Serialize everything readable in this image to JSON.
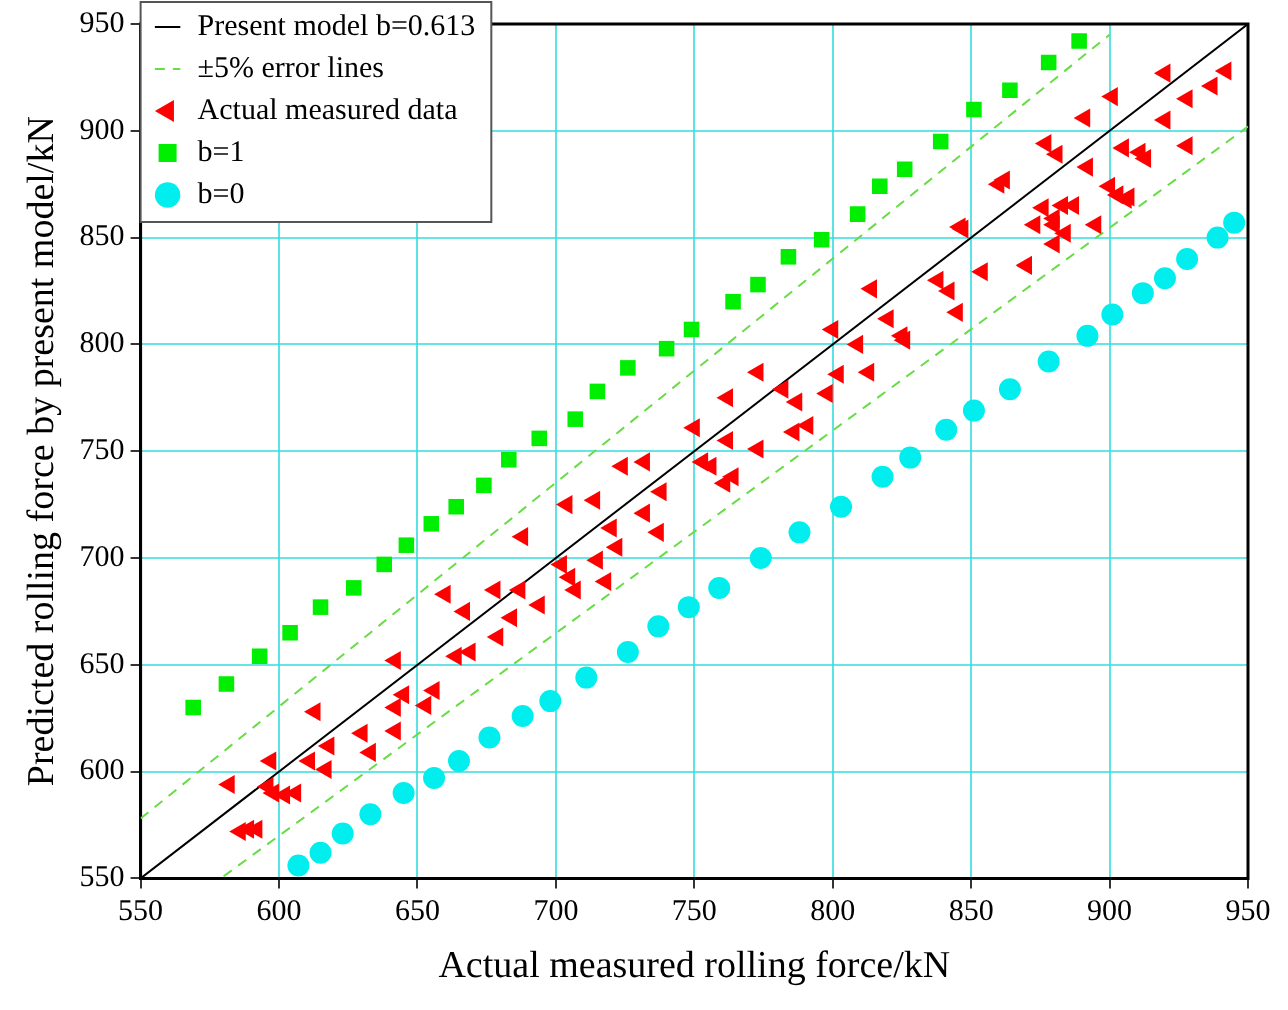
{
  "chart_data": {
    "type": "scatter",
    "xlabel": "Actual measured rolling force/kN",
    "ylabel": "Predicted rolling force by present model/kN",
    "xlim": [
      550,
      950
    ],
    "ylim": [
      550,
      950
    ],
    "xticks": [
      550,
      600,
      650,
      700,
      750,
      800,
      850,
      900,
      950
    ],
    "yticks": [
      550,
      600,
      650,
      700,
      750,
      800,
      850,
      900,
      950
    ],
    "grid": true,
    "legend": "top left",
    "series": [
      {
        "name": "Present model b=0.613",
        "type": "line",
        "color": "#000000",
        "marker": "none",
        "line_style": "solid",
        "x": [
          550,
          950
        ],
        "values": [
          550,
          950
        ]
      },
      {
        "name": "±5% error lines",
        "type": "line",
        "color": "#66dd44",
        "marker": "none",
        "line_style": "dashed",
        "x": [
          550,
          900
        ],
        "values": [
          578,
          945
        ]
      },
      {
        "name": null,
        "type": "line",
        "color": "#66dd44",
        "marker": "none",
        "line_style": "dashed",
        "x": [
          580,
          950
        ],
        "values": [
          551,
          902
        ]
      },
      {
        "name": "Actual measured data",
        "color": "#ff0000",
        "marker": "triangle",
        "x": [
          582,
          586,
          589,
          592,
          597,
          596,
          598,
          602,
          606,
          611,
          618,
          617,
          613,
          630,
          633,
          642,
          642,
          645,
          642,
          653,
          656,
          660,
          667,
          664,
          669,
          678,
          679,
          684,
          687,
          694,
          688,
          704,
          714,
          724,
          732,
          720,
          722,
          732,
          737,
          738,
          702,
          705,
          707,
          718,
          715,
          750,
          762,
          773,
          753,
          756,
          761,
          764,
          773,
          782,
          787,
          798,
          786,
          791,
          762,
          800,
          802,
          813,
          809,
          814,
          820,
          825,
          826,
          838,
          842,
          845,
          854,
          846,
          870,
          880,
          876,
          880,
          883,
          887,
          873,
          880,
          884,
          895,
          903,
          906,
          847,
          860,
          862,
          900,
          907,
          877,
          881,
          892,
          905,
          911,
          913,
          891,
          901,
          920,
          928,
          920,
          937,
          942,
          928
        ],
        "values": [
          594,
          572,
          573,
          573,
          605,
          593,
          590,
          589,
          590,
          605,
          612,
          601,
          628,
          618,
          609,
          619,
          652,
          636,
          630,
          631,
          638,
          683,
          675,
          654,
          656,
          685,
          663,
          672,
          685,
          678,
          710,
          725,
          727,
          743,
          745,
          714,
          705,
          721,
          712,
          731,
          697,
          691,
          685,
          689,
          699,
          761,
          755,
          751,
          745,
          743,
          735,
          738,
          787,
          779,
          773,
          777,
          759,
          762,
          775,
          807,
          786,
          787,
          800,
          826,
          812,
          804,
          802,
          830,
          825,
          815,
          834,
          855,
          837,
          847,
          864,
          859,
          865,
          865,
          856,
          856,
          852,
          856,
          870,
          868,
          854,
          875,
          877,
          874,
          869,
          894,
          889,
          883,
          892,
          890,
          887,
          906,
          916,
          905,
          893,
          927,
          921,
          928,
          915
        ]
      },
      {
        "name": "b=1",
        "color": "#00ee00",
        "marker": "square",
        "x": [
          569,
          581,
          593,
          604,
          615,
          627,
          638,
          646,
          655,
          664,
          674,
          683,
          694,
          707,
          715,
          726,
          740,
          749,
          764,
          773,
          784,
          796,
          809,
          817,
          826,
          839,
          851,
          864,
          878,
          889
        ],
        "values": [
          630,
          641,
          654,
          665,
          677,
          686,
          697,
          706,
          716,
          724,
          734,
          746,
          756,
          765,
          778,
          789,
          798,
          807,
          820,
          828,
          841,
          849,
          861,
          874,
          882,
          895,
          910,
          919,
          932,
          942
        ]
      },
      {
        "name": "b=0",
        "color": "#00eeee",
        "marker": "circle",
        "x": [
          607,
          615,
          623,
          633,
          645,
          656,
          665,
          676,
          688,
          698,
          711,
          726,
          737,
          748,
          759,
          774,
          788,
          803,
          818,
          828,
          841,
          851,
          864,
          878,
          892,
          901,
          912,
          920,
          928,
          939,
          945
        ],
        "values": [
          556,
          562,
          571,
          580,
          590,
          597,
          605,
          616,
          626,
          633,
          644,
          656,
          668,
          677,
          686,
          700,
          712,
          724,
          738,
          747,
          760,
          769,
          779,
          792,
          804,
          814,
          824,
          831,
          840,
          850,
          857
        ]
      }
    ]
  }
}
